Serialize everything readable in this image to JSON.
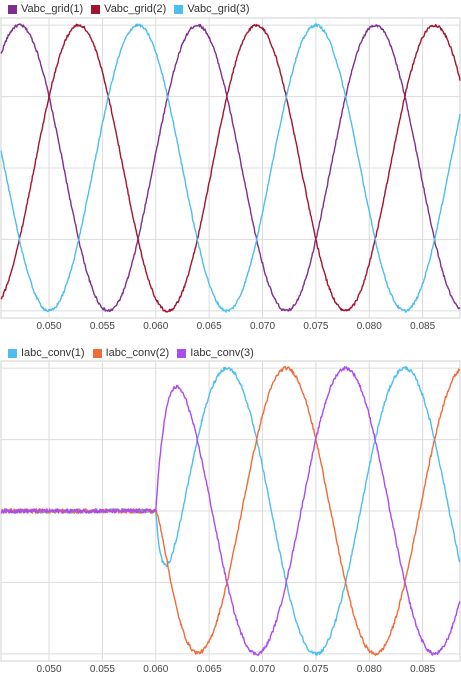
{
  "chart_data": [
    {
      "type": "line",
      "xlim": [
        0.0455,
        0.0885
      ],
      "ylim": [
        -1.05,
        1.05
      ],
      "grid": true,
      "xticks": [
        "0.050",
        "0.055",
        "0.060",
        "0.065",
        "0.070",
        "0.075",
        "0.080",
        "0.085"
      ],
      "xtick_values": [
        0.05,
        0.055,
        0.06,
        0.065,
        0.07,
        0.075,
        0.08,
        0.085
      ],
      "ygrid_values": [
        -1.0,
        -0.5,
        0.0,
        0.5,
        1.0
      ],
      "legend_position": "top",
      "series": [
        {
          "name": "Vabc_grid(1)",
          "color": "#7e2f8e",
          "amplitude": 1.0,
          "frequency_hz": 60,
          "phase_deg": 150,
          "onset": null
        },
        {
          "name": "Vabc_grid(2)",
          "color": "#a2142f",
          "amplitude": 1.0,
          "frequency_hz": 60,
          "phase_deg": 30,
          "onset": null
        },
        {
          "name": "Vabc_grid(3)",
          "color": "#4dbeee",
          "amplitude": 1.0,
          "frequency_hz": 60,
          "phase_deg": -90,
          "onset": null
        }
      ]
    },
    {
      "type": "line",
      "xlim": [
        0.0455,
        0.0885
      ],
      "ylim": [
        -1.05,
        1.05
      ],
      "grid": true,
      "xticks": [
        "0.050",
        "0.055",
        "0.060",
        "0.065",
        "0.070",
        "0.075",
        "0.080",
        "0.085"
      ],
      "xtick_values": [
        0.05,
        0.055,
        0.06,
        0.065,
        0.07,
        0.075,
        0.08,
        0.085
      ],
      "ygrid_values": [
        -1.0,
        -0.5,
        0.0,
        0.5,
        1.0
      ],
      "legend_position": "top",
      "series": [
        {
          "name": "Iabc_conv(1)",
          "color": "#4dbeee",
          "amplitude": 1.0,
          "frequency_hz": 60,
          "phase_deg": 90,
          "onset": 0.06
        },
        {
          "name": "Iabc_conv(2)",
          "color": "#f26b38",
          "amplitude": 1.0,
          "frequency_hz": 60,
          "phase_deg": -30,
          "onset": 0.06
        },
        {
          "name": "Iabc_conv(3)",
          "color": "#a94cf0",
          "amplitude": 1.0,
          "frequency_hz": 60,
          "phase_deg": -150,
          "onset": 0.06
        }
      ]
    }
  ]
}
